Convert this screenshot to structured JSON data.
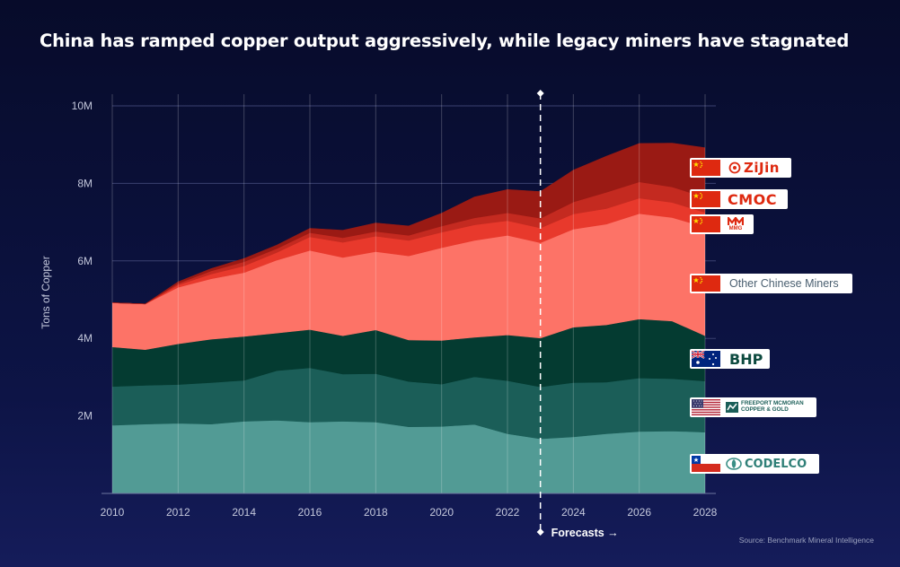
{
  "title": "China has ramped copper output aggressively, while legacy miners have stagnated",
  "source": "Source: Benchmark Mineral Intelligence",
  "forecast_label": "Forecasts →",
  "colors": {
    "codelco": "#529b95",
    "freeport": "#1b5e58",
    "bhp": "#043b31",
    "other_chinese": "#fd7367",
    "mmg": "#e8392c",
    "cmoc": "#c42a20",
    "zijin": "#9a1a14",
    "china_red": "#de2910",
    "grid": "#3a4170"
  },
  "legend": [
    {
      "name": "Zijin",
      "logo_text": "ZiJin",
      "flag": "china-flag"
    },
    {
      "name": "CMOC",
      "logo_text": "CMOC",
      "flag": "china-flag"
    },
    {
      "name": "MMG",
      "logo_text": "MMG",
      "flag": "china-flag"
    },
    {
      "name": "Other Chinese Miners",
      "logo_text": "Other Chinese Miners",
      "flag": "china-flag"
    },
    {
      "name": "BHP",
      "logo_text": "BHP",
      "flag": "australia-flag"
    },
    {
      "name": "Freeport McMoRan",
      "logo_text_1": "Freeport McMoRan",
      "logo_text_2": "Copper & Gold",
      "flag": "usa-flag"
    },
    {
      "name": "Codelco",
      "logo_text": "CODELCO",
      "flag": "chile-flag"
    }
  ],
  "chart_data": {
    "type": "area",
    "stacked": true,
    "title": "China has ramped copper output aggressively, while legacy miners have stagnated",
    "xlabel": "",
    "ylabel": "Tons of Copper",
    "xlim": [
      2010,
      2028
    ],
    "ylim": [
      0,
      10000000
    ],
    "x_ticks": [
      2010,
      2012,
      2014,
      2016,
      2018,
      2020,
      2022,
      2024,
      2026,
      2028
    ],
    "y_ticks": [
      {
        "value": 2000000,
        "label": "2M"
      },
      {
        "value": 4000000,
        "label": "4M"
      },
      {
        "value": 6000000,
        "label": "6M"
      },
      {
        "value": 8000000,
        "label": "8M"
      },
      {
        "value": 10000000,
        "label": "10M"
      }
    ],
    "forecast_start": 2023,
    "x": [
      2010,
      2011,
      2012,
      2013,
      2014,
      2015,
      2016,
      2017,
      2018,
      2019,
      2020,
      2021,
      2022,
      2023,
      2024,
      2025,
      2026,
      2027,
      2028
    ],
    "series": [
      {
        "name": "Codelco",
        "color": "#529b95",
        "values": [
          1760000,
          1790000,
          1810000,
          1790000,
          1860000,
          1890000,
          1840000,
          1860000,
          1840000,
          1720000,
          1730000,
          1780000,
          1540000,
          1410000,
          1460000,
          1540000,
          1600000,
          1610000,
          1580000
        ]
      },
      {
        "name": "Freeport McMoRan",
        "color": "#1b5e58",
        "values": [
          1000000,
          1000000,
          1000000,
          1070000,
          1060000,
          1280000,
          1400000,
          1220000,
          1250000,
          1170000,
          1090000,
          1230000,
          1370000,
          1340000,
          1400000,
          1330000,
          1380000,
          1350000,
          1320000
        ]
      },
      {
        "name": "BHP",
        "color": "#043b31",
        "values": [
          1020000,
          920000,
          1050000,
          1120000,
          1130000,
          970000,
          990000,
          990000,
          1130000,
          1070000,
          1130000,
          1020000,
          1180000,
          1260000,
          1430000,
          1480000,
          1520000,
          1490000,
          1170000
        ]
      },
      {
        "name": "Other Chinese Miners",
        "color": "#fd7367",
        "values": [
          1140000,
          1180000,
          1460000,
          1560000,
          1650000,
          1880000,
          2040000,
          2020000,
          2020000,
          2170000,
          2390000,
          2500000,
          2570000,
          2460000,
          2530000,
          2600000,
          2720000,
          2670000,
          2800000
        ]
      },
      {
        "name": "MMG",
        "color": "#e8392c",
        "values": [
          0,
          0,
          60000,
          120000,
          170000,
          200000,
          350000,
          390000,
          400000,
          400000,
          400000,
          400000,
          380000,
          380000,
          390000,
          400000,
          400000,
          390000,
          380000
        ]
      },
      {
        "name": "CMOC",
        "color": "#c42a20",
        "values": [
          0,
          0,
          40000,
          80000,
          110000,
          100000,
          110000,
          120000,
          120000,
          130000,
          160000,
          180000,
          200000,
          250000,
          310000,
          420000,
          420000,
          400000,
          390000
        ]
      },
      {
        "name": "Zijin",
        "color": "#9a1a14",
        "values": [
          0,
          0,
          40000,
          60000,
          80000,
          90000,
          110000,
          190000,
          220000,
          240000,
          330000,
          540000,
          600000,
          690000,
          820000,
          930000,
          990000,
          1130000,
          1280000
        ]
      }
    ]
  }
}
